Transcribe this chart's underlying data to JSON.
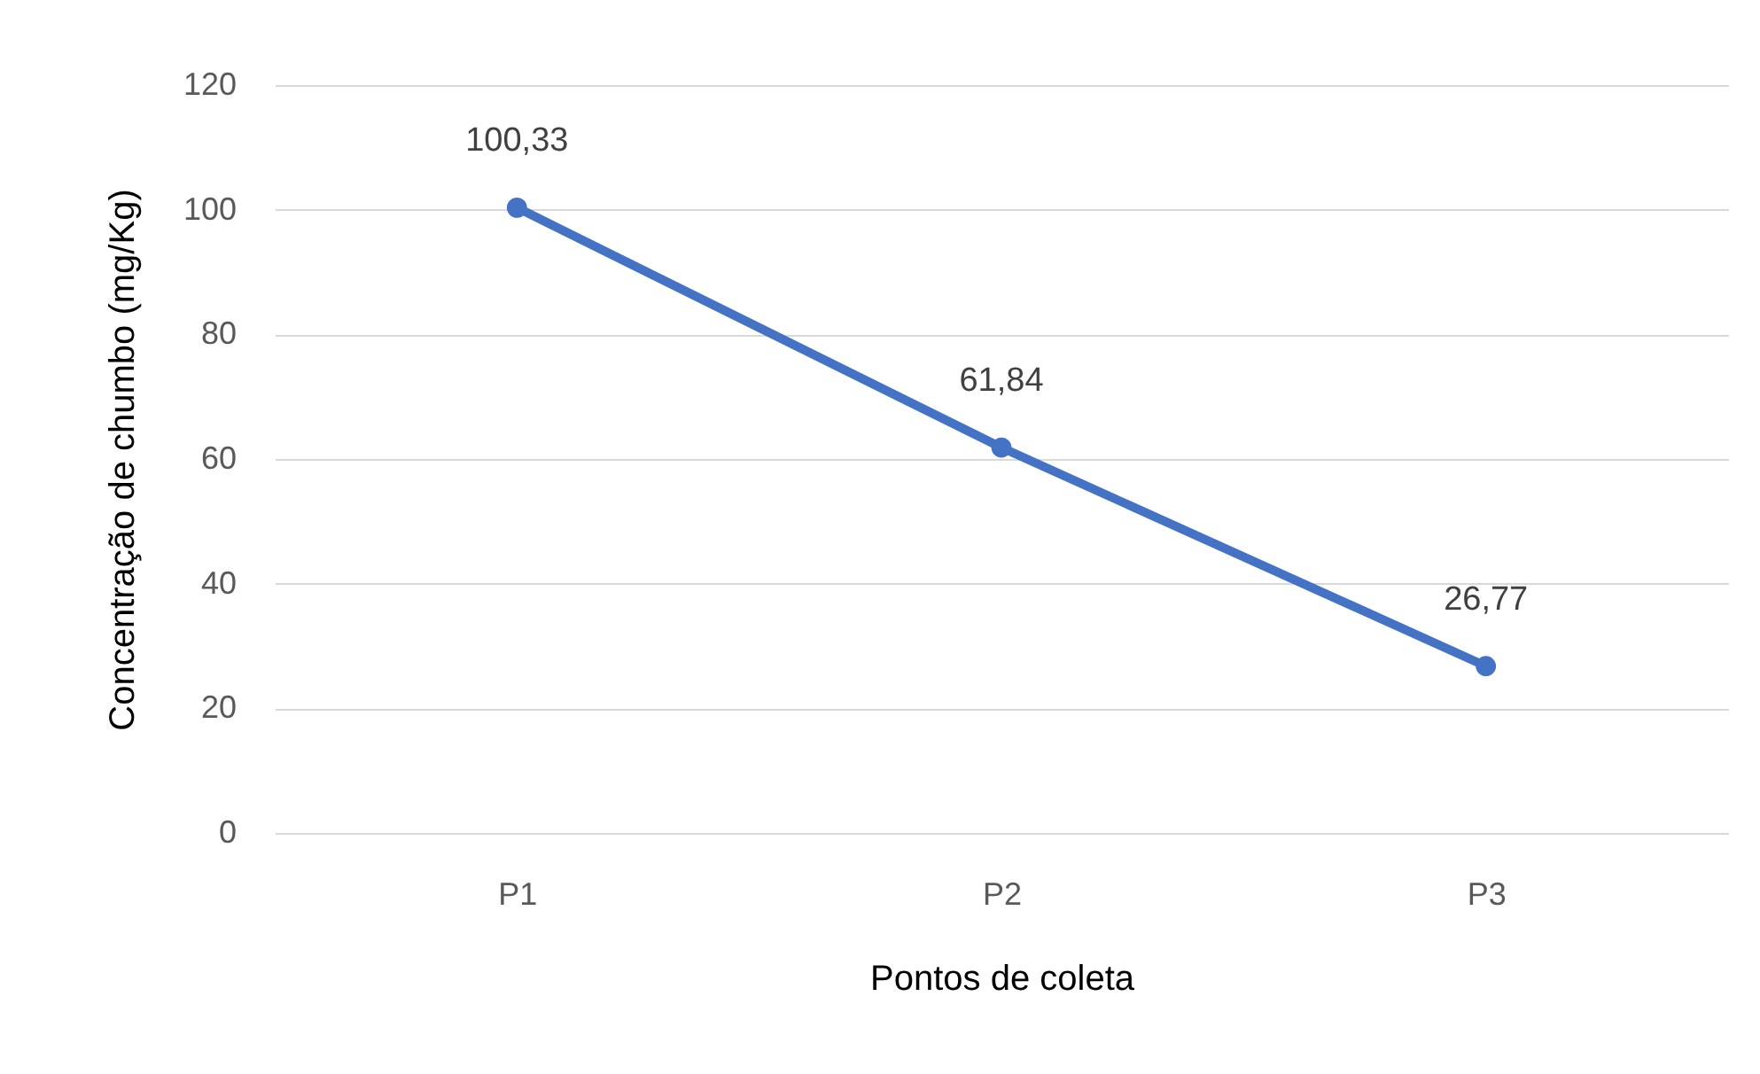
{
  "chart_data": {
    "type": "line",
    "xlabel": "Pontos de coleta",
    "ylabel": "Concentração de chumbo (mg/Kg)",
    "categories": [
      "P1",
      "P2",
      "P3"
    ],
    "series": [
      {
        "color": "#4472c4",
        "values": [
          100.33,
          61.84,
          26.77
        ],
        "value_labels": [
          "100,33",
          "61,84",
          "26,77"
        ]
      }
    ],
    "ylim": [
      0,
      120
    ],
    "yticks": [
      0,
      20,
      40,
      60,
      80,
      100,
      120
    ],
    "grid": "y",
    "marker": "circle"
  }
}
